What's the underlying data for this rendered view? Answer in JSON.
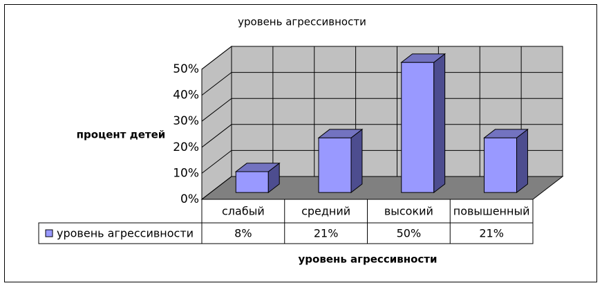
{
  "chart_data": {
    "type": "bar3d",
    "title": "уровень агрессивности",
    "y_label": "процент детей",
    "x_label": "уровень агрессивности",
    "categories": [
      "слабый",
      "средний",
      "высокий",
      "повышенный"
    ],
    "series": [
      {
        "name": "уровень агрессивности",
        "color": "#9999ff",
        "values": [
          8,
          21,
          50,
          21
        ],
        "value_labels": [
          "8%",
          "21%",
          "50%",
          "21%"
        ]
      }
    ],
    "ylim": [
      0,
      50
    ],
    "yticks": [
      {
        "value": 0,
        "label": "0%"
      },
      {
        "value": 10,
        "label": "10%"
      },
      {
        "value": 20,
        "label": "20%"
      },
      {
        "value": 30,
        "label": "30%"
      },
      {
        "value": 40,
        "label": "40%"
      },
      {
        "value": 50,
        "label": "50%"
      }
    ],
    "grid": true,
    "data_table": true
  }
}
